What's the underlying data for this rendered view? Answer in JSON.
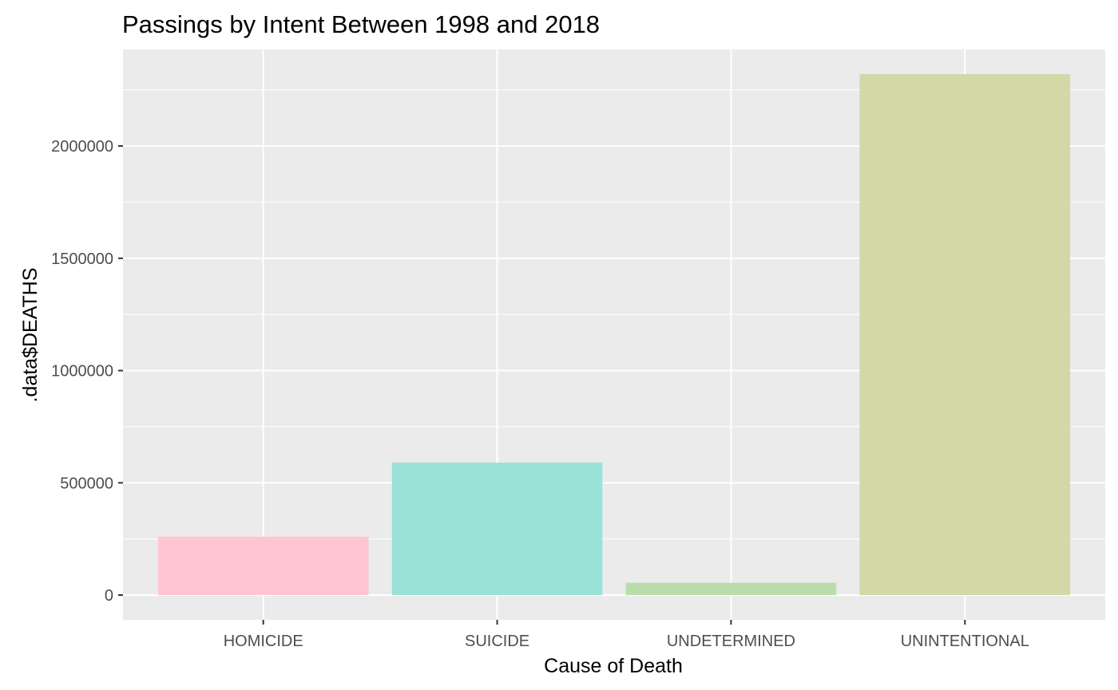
{
  "chart_data": {
    "type": "bar",
    "title": "Passings by Intent Between 1998 and 2018",
    "xlabel": "Cause of Death",
    "ylabel": ".data$DEATHS",
    "categories": [
      "HOMICIDE",
      "SUICIDE",
      "UNDETERMINED",
      "UNINTENTIONAL"
    ],
    "values": [
      260000,
      590000,
      55000,
      2320000
    ],
    "colors": [
      "#ffc5d2",
      "#9ae2d7",
      "#b9deab",
      "#d4d7a6"
    ],
    "yticks": [
      0,
      500000,
      1000000,
      1500000,
      2000000
    ],
    "ytick_labels": [
      "0",
      "500000",
      "1000000",
      "1500000",
      "2000000"
    ],
    "ylim": [
      -110000,
      2430000
    ],
    "grid": true,
    "legend": "none",
    "panel_background": "#ebebeb",
    "grid_color": "#ffffff"
  }
}
